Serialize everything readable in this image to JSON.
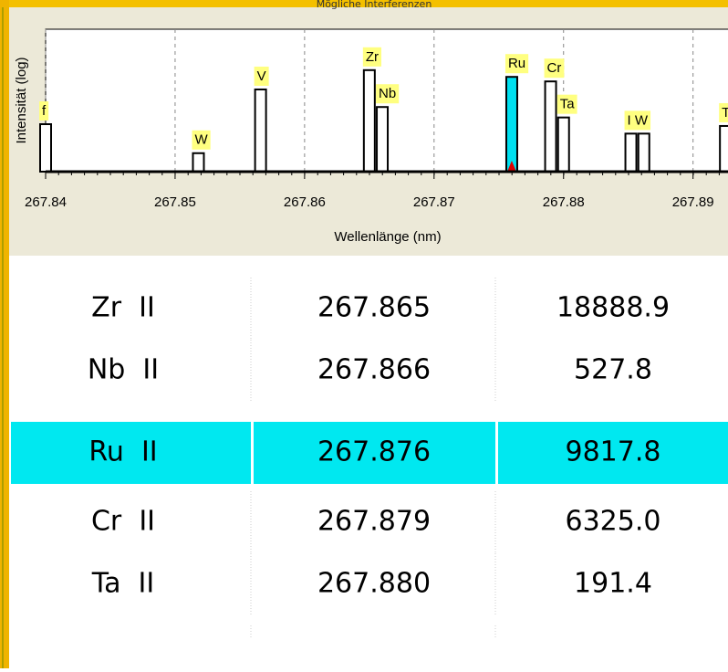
{
  "chart_data": {
    "type": "bar",
    "title": "Mögliche Interferenzen",
    "xlabel": "Wellenlänge (nm)",
    "ylabel": "Intensität (log)",
    "x": [
      267.84,
      267.8518,
      267.8566,
      267.865,
      267.866,
      267.876,
      267.879,
      267.88,
      267.8852,
      267.8862,
      267.8925
    ],
    "labels": [
      "f",
      "W",
      "V",
      "Zr",
      "Nb",
      "Ru",
      "Cr",
      "Ta",
      "I W",
      null,
      "T"
    ],
    "values": [
      100,
      6,
      2900,
      18888.9,
      527.8,
      9817.8,
      6325.0,
      191.4,
      40,
      40,
      84
    ],
    "colors": [
      "#ffffff",
      "#ffffff",
      "#ffffff",
      "#ffffff",
      "#ffffff",
      "#00e0f0",
      "#ffffff",
      "#ffffff",
      "#ffffff",
      "#ffffff",
      "#ffffff"
    ],
    "xlim": [
      267.84,
      267.8927
    ],
    "xticks": [
      267.84,
      267.85,
      267.86,
      267.87,
      267.88,
      267.89
    ],
    "ylim": [
      1,
      1000000
    ],
    "log_y": true,
    "grid": true
  },
  "table": {
    "rows": [
      [
        "Zr  II",
        "267.865",
        "18888.9"
      ],
      [
        "Nb  II",
        "267.866",
        "527.8"
      ],
      [
        "Ru  II",
        "267.876",
        "9817.8"
      ],
      [
        "Cr  II",
        "267.879",
        "6325.0"
      ],
      [
        "Ta  II",
        "267.880",
        "191.4"
      ]
    ],
    "highlight_row": 2,
    "highlight_color": "#00e8f0"
  }
}
